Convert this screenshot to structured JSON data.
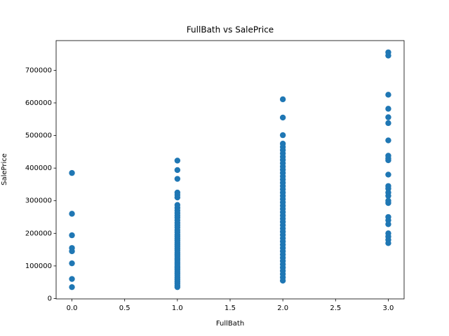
{
  "chart_data": {
    "type": "scatter",
    "title": "FullBath vs SalePrice",
    "x_label": "FullBath",
    "y_label": "SalePrice",
    "color": "#1f77b4",
    "x": [
      0,
      0,
      0,
      0,
      0,
      0,
      0,
      0,
      1,
      1,
      1,
      1,
      1,
      1,
      1,
      1,
      1,
      1,
      1,
      1,
      1,
      1,
      1,
      1,
      1,
      1,
      1,
      1,
      1,
      1,
      1,
      1,
      1,
      1,
      1,
      1,
      1,
      1,
      1,
      1,
      1,
      1,
      1,
      1,
      1,
      1,
      1,
      1,
      1,
      1,
      1,
      1,
      1,
      1,
      2,
      2,
      2,
      2,
      2,
      2,
      2,
      2,
      2,
      2,
      2,
      2,
      2,
      2,
      2,
      2,
      2,
      2,
      2,
      2,
      2,
      2,
      2,
      2,
      2,
      2,
      2,
      2,
      2,
      2,
      2,
      2,
      2,
      2,
      2,
      2,
      2,
      2,
      2,
      2,
      2,
      2,
      2,
      2,
      2,
      2,
      3,
      3,
      3,
      3,
      3,
      3,
      3,
      3,
      3,
      3,
      3,
      3,
      3,
      3,
      3,
      3,
      3,
      3,
      3,
      3,
      3,
      3,
      3,
      3
    ],
    "y": [
      385000,
      260000,
      194000,
      155000,
      145000,
      108000,
      60000,
      35000,
      423000,
      394000,
      367000,
      325000,
      318000,
      310000,
      287000,
      278000,
      270000,
      262000,
      255000,
      248000,
      240000,
      232000,
      225000,
      218000,
      210000,
      203000,
      196000,
      190000,
      184000,
      178000,
      172000,
      166000,
      160000,
      154000,
      148000,
      142000,
      136000,
      130000,
      124000,
      118000,
      112000,
      106000,
      100000,
      94000,
      88000,
      82000,
      76000,
      70000,
      64000,
      58000,
      52000,
      46000,
      40000,
      35000,
      611000,
      555000,
      501000,
      475000,
      465000,
      455000,
      445000,
      435000,
      425000,
      415000,
      405000,
      395000,
      385000,
      375000,
      365000,
      355000,
      345000,
      335000,
      325000,
      315000,
      305000,
      295000,
      285000,
      275000,
      265000,
      255000,
      245000,
      235000,
      225000,
      215000,
      205000,
      195000,
      185000,
      175000,
      165000,
      155000,
      145000,
      135000,
      125000,
      115000,
      105000,
      95000,
      85000,
      75000,
      65000,
      55000,
      755000,
      745000,
      625000,
      582000,
      556000,
      538000,
      485000,
      438000,
      430000,
      424000,
      380000,
      345000,
      337000,
      325000,
      315000,
      300000,
      293000,
      250000,
      240000,
      228000,
      200000,
      190000,
      180000,
      170000
    ],
    "xlim": [
      -0.15,
      3.15
    ],
    "ylim": [
      -1105,
      791005
    ],
    "xticks": [
      {
        "value": 0,
        "label": "0.0"
      },
      {
        "value": 0.5,
        "label": "0.5"
      },
      {
        "value": 1,
        "label": "1.0"
      },
      {
        "value": 1.5,
        "label": "1.5"
      },
      {
        "value": 2,
        "label": "2.0"
      },
      {
        "value": 2.5,
        "label": "2.5"
      },
      {
        "value": 3,
        "label": "3.0"
      }
    ],
    "yticks": [
      0,
      100000,
      200000,
      300000,
      400000,
      500000,
      600000,
      700000
    ]
  }
}
